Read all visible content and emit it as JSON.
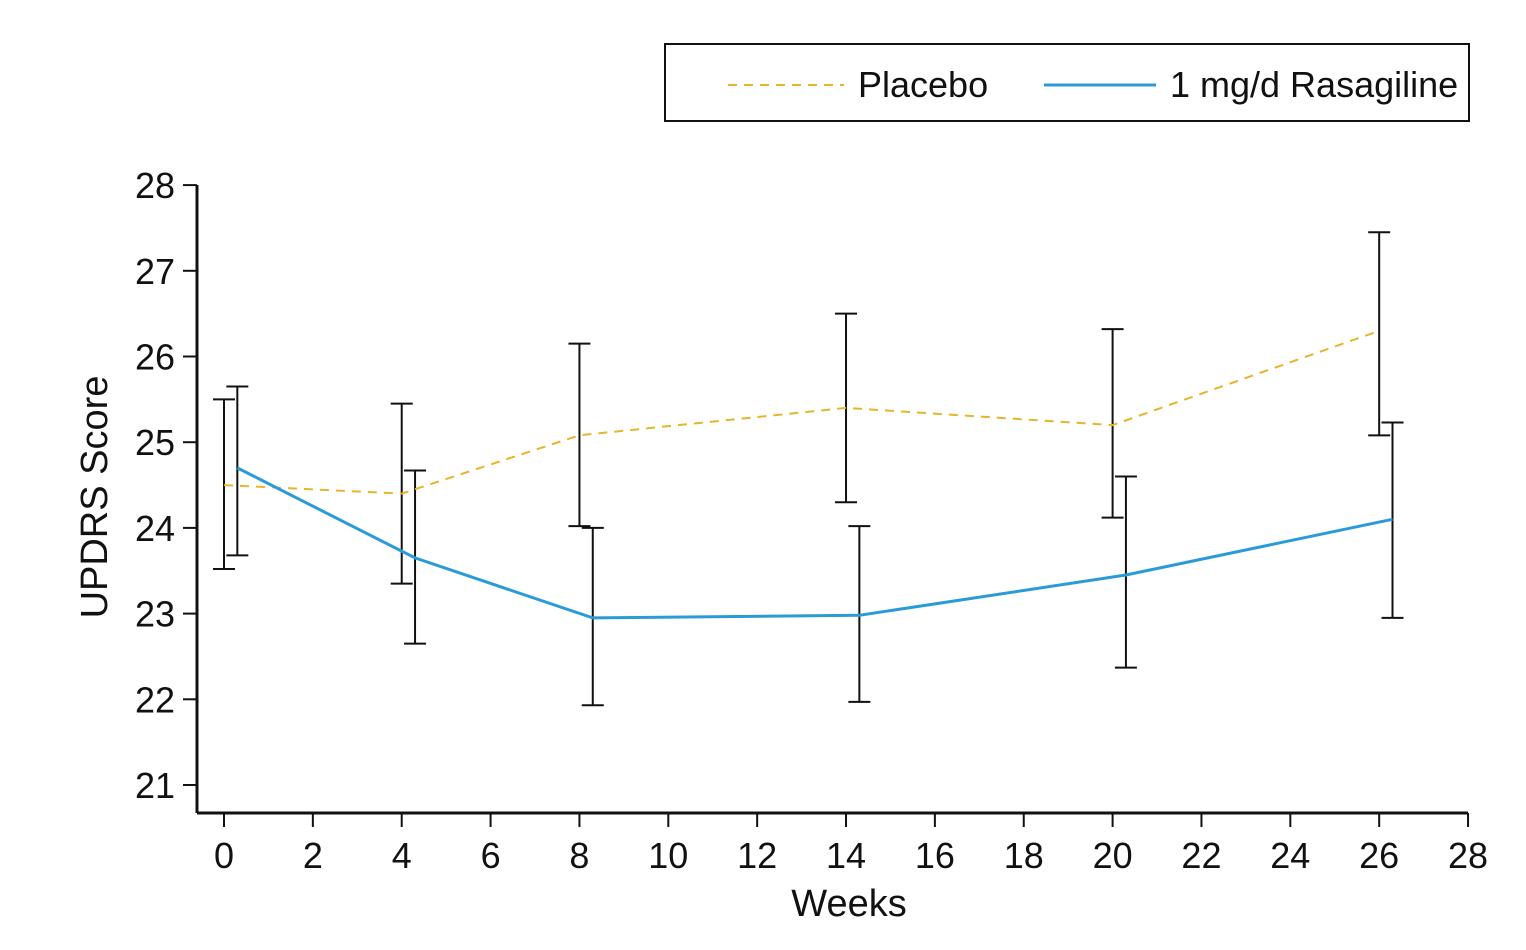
{
  "chart_data": {
    "type": "line",
    "title": "",
    "xlabel": "Weeks",
    "ylabel": "UPDRS Score",
    "xlim": [
      0,
      28
    ],
    "ylim": [
      21,
      28
    ],
    "x_ticks": [
      0,
      2,
      4,
      6,
      8,
      10,
      12,
      14,
      16,
      18,
      20,
      22,
      24,
      26,
      28
    ],
    "y_ticks": [
      21,
      22,
      23,
      24,
      25,
      26,
      27,
      28
    ],
    "grid": false,
    "legend_position": "top-right",
    "series": [
      {
        "name": "Placebo",
        "color": "#E8B429",
        "style": "dashed",
        "points": [
          {
            "x": 0,
            "y": 24.5,
            "err_low": 23.52,
            "err_high": 25.5
          },
          {
            "x": 4,
            "y": 24.4,
            "err_low": 23.35,
            "err_high": 25.45
          },
          {
            "x": 8,
            "y": 25.08,
            "err_low": 24.02,
            "err_high": 26.15
          },
          {
            "x": 14,
            "y": 25.4,
            "err_low": 24.3,
            "err_high": 26.5
          },
          {
            "x": 20,
            "y": 25.2,
            "err_low": 24.12,
            "err_high": 26.32
          },
          {
            "x": 26,
            "y": 26.3,
            "err_low": 25.08,
            "err_high": 27.45
          }
        ]
      },
      {
        "name": "1 mg/d Rasagiline",
        "color": "#2B9BD8",
        "style": "solid",
        "points": [
          {
            "x": 0.3,
            "y": 24.7,
            "err_low": 23.68,
            "err_high": 25.65
          },
          {
            "x": 4.3,
            "y": 23.65,
            "err_low": 22.65,
            "err_high": 24.67
          },
          {
            "x": 8.3,
            "y": 22.95,
            "err_low": 21.93,
            "err_high": 24.0
          },
          {
            "x": 14.3,
            "y": 22.98,
            "err_low": 21.97,
            "err_high": 24.02
          },
          {
            "x": 20.3,
            "y": 23.45,
            "err_low": 22.37,
            "err_high": 24.6
          },
          {
            "x": 26.3,
            "y": 24.1,
            "err_low": 22.95,
            "err_high": 25.23
          }
        ]
      }
    ]
  }
}
